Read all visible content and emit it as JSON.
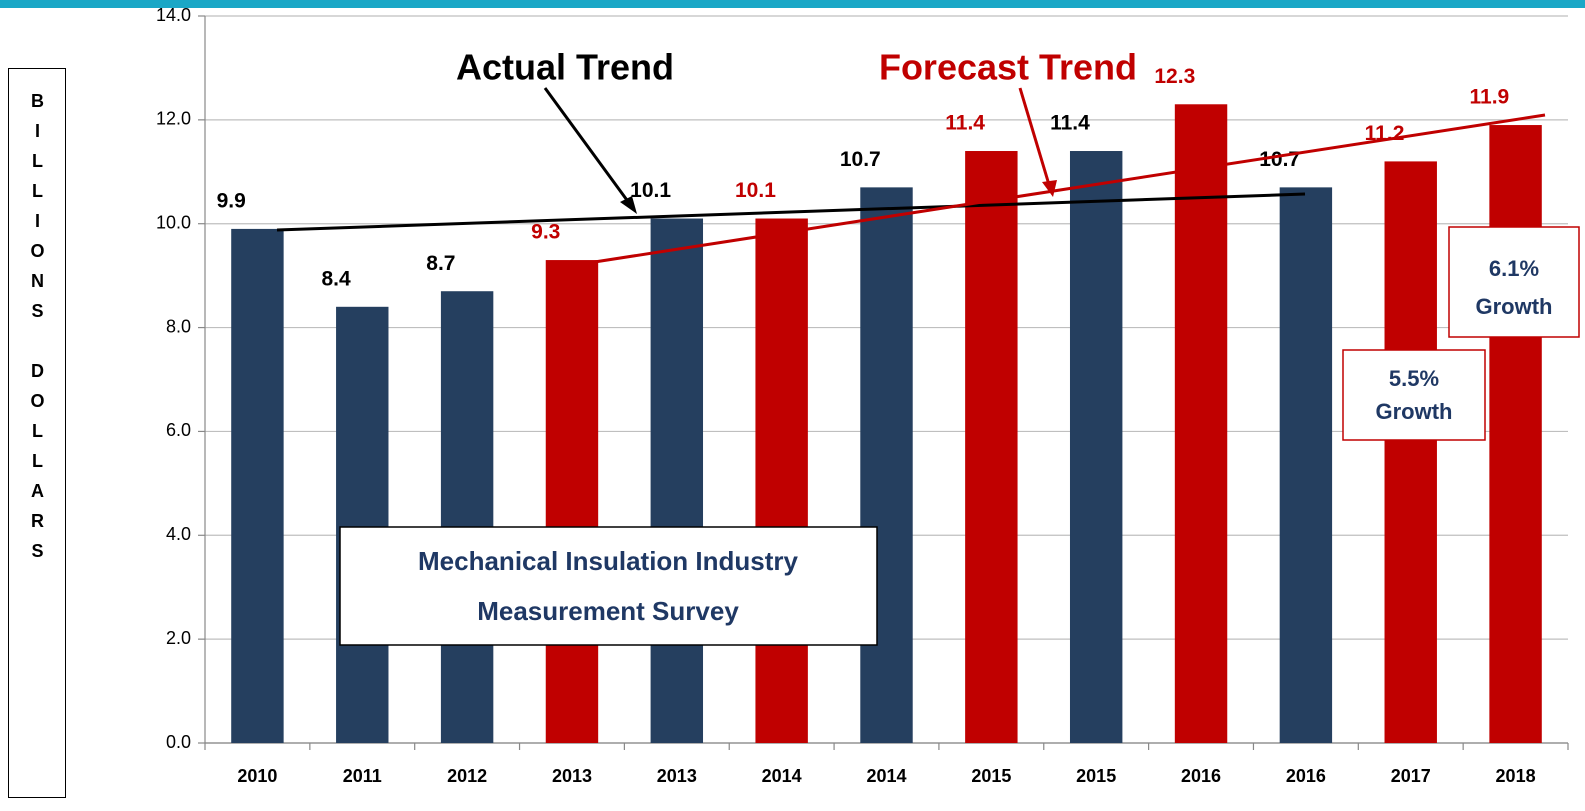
{
  "chart_data": {
    "type": "bar",
    "y_label": "BILLIONS DOLLARS",
    "categories": [
      "2010",
      "2011",
      "2012",
      "2013",
      "2013",
      "2014",
      "2014",
      "2015",
      "2015",
      "2016",
      "2016",
      "2017",
      "2018"
    ],
    "values": [
      9.9,
      8.4,
      8.7,
      9.3,
      10.1,
      10.1,
      10.7,
      11.4,
      11.4,
      12.3,
      10.7,
      11.2,
      11.9
    ],
    "colors": [
      "#253f5f",
      "#253f5f",
      "#253f5f",
      "#c00000",
      "#253f5f",
      "#c00000",
      "#253f5f",
      "#c00000",
      "#253f5f",
      "#c00000",
      "#253f5f",
      "#c00000",
      "#c00000"
    ],
    "ylim": [
      0,
      14
    ],
    "yticks": [
      {
        "value": 0,
        "label": "0.0"
      },
      {
        "value": 2,
        "label": "2.0"
      },
      {
        "value": 4,
        "label": "4.0"
      },
      {
        "value": 6,
        "label": "6.0"
      },
      {
        "value": 8,
        "label": "8.0"
      },
      {
        "value": 10,
        "label": "10.0"
      },
      {
        "value": 12,
        "label": "12.0"
      },
      {
        "value": 14,
        "label": "14.0"
      }
    ],
    "grid": true,
    "annotations": {
      "actual_trend": "Actual Trend",
      "forecast_trend": "Forecast Trend",
      "survey": [
        "Mechanical Insulation Industry",
        "Measurement Survey"
      ],
      "growth_2017": [
        "5.5%",
        "Growth"
      ],
      "growth_2018": [
        "6.1%",
        "Growth"
      ]
    }
  }
}
